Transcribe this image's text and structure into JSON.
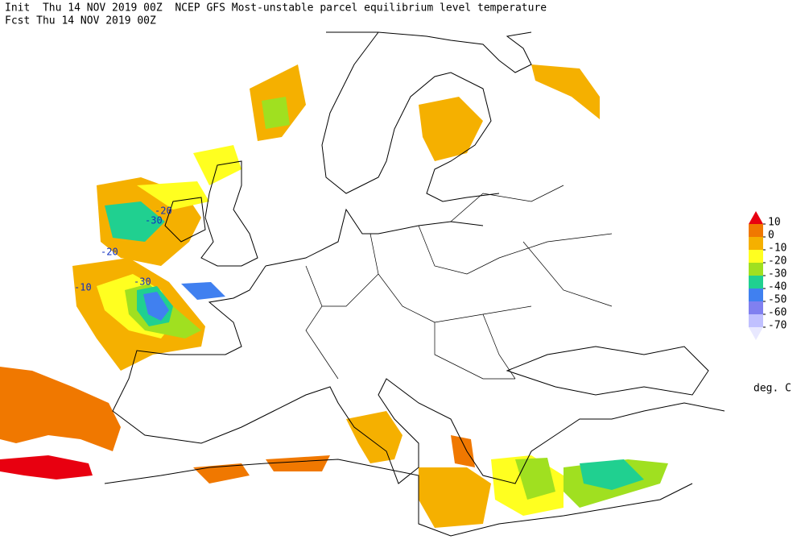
{
  "header": {
    "line1": "Init  Thu 14 NOV 2019 00Z  NCEP GFS Most-unstable parcel equilibrium level temperature",
    "line2": "Fcst Thu 14 NOV 2019 00Z"
  },
  "legend": {
    "levels": [
      10,
      0,
      -10,
      -20,
      -30,
      -40,
      -50,
      -60,
      -70
    ],
    "colors": [
      "#e80010",
      "#f07800",
      "#f5b000",
      "#ffff20",
      "#a0e020",
      "#20d090",
      "#4080f0",
      "#8080f0",
      "#c0c0ff",
      "#e8e8ff"
    ],
    "unit": "deg. C"
  },
  "contour_labels": [
    -20,
    -30,
    -20,
    -10,
    -30
  ]
}
